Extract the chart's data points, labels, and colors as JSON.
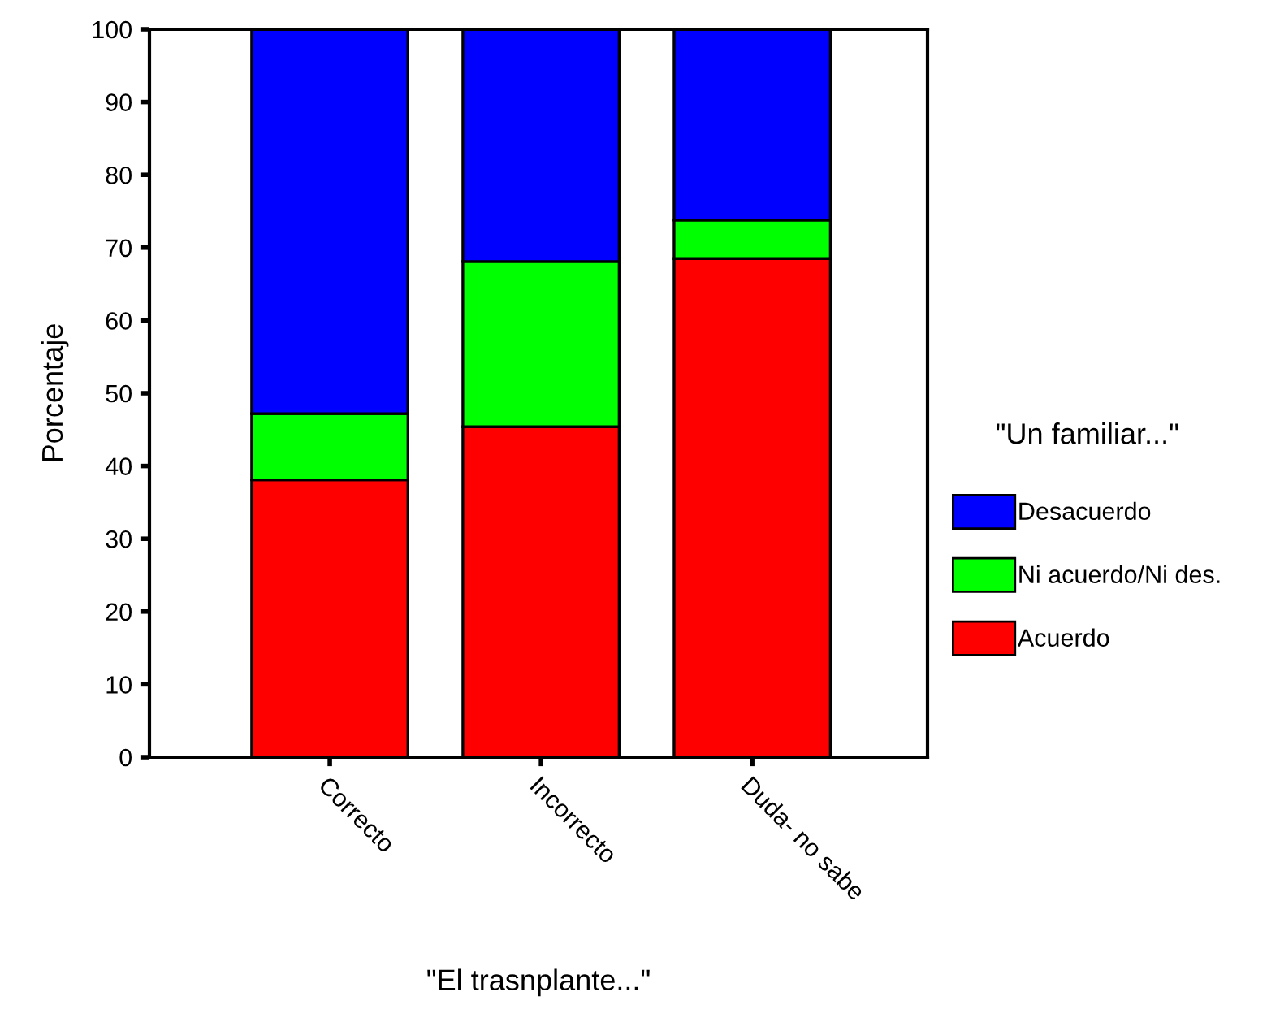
{
  "chart_data": {
    "type": "bar",
    "stacked": true,
    "xlabel": "\"El trasnplante...\"",
    "ylabel": "Porcentaje",
    "legend_title": "\"Un familiar...\"",
    "categories": [
      "Correcto",
      "Incorrecto",
      "Duda- no sabe"
    ],
    "series": [
      {
        "name": "Acuerdo",
        "color": "#ff0000",
        "values": [
          38.1,
          45.4,
          68.5
        ]
      },
      {
        "name": "Ni acuerdo/Ni des.",
        "color": "#00ff00",
        "values": [
          9.1,
          22.7,
          5.3
        ]
      },
      {
        "name": "Desacuerdo",
        "color": "#0000ff",
        "values": [
          52.8,
          31.9,
          26.2
        ]
      }
    ],
    "ylim": [
      0,
      100
    ],
    "yticks": [
      0,
      10,
      20,
      30,
      40,
      50,
      60,
      70,
      80,
      90,
      100
    ],
    "grid": false,
    "legend": "right"
  }
}
